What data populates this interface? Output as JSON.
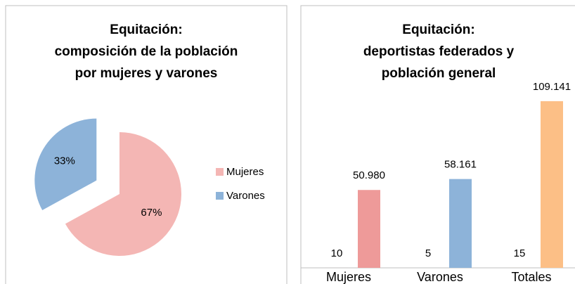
{
  "chart_data": [
    {
      "type": "pie",
      "title": [
        "Equitación:",
        "composición de la población",
        "por mujeres y varones"
      ],
      "categories": [
        "Mujeres",
        "Varones"
      ],
      "values": [
        67,
        33
      ],
      "value_labels": [
        "67%",
        "33%"
      ],
      "colors": [
        "#f4b6b4",
        "#8db3d9"
      ],
      "exploded": [
        false,
        true
      ]
    },
    {
      "type": "bar",
      "title": [
        "Equitación:",
        "deportistas federados y",
        "población general"
      ],
      "categories": [
        "Mujeres",
        "Varones",
        "Totales"
      ],
      "series": [
        {
          "values": [
            10,
            5,
            15
          ],
          "colors": [
            "#ee9a99",
            "#8db3d9",
            "#fcbf86"
          ]
        },
        {
          "values": [
            50980,
            58161,
            109141
          ],
          "value_labels": [
            "50.980",
            "58.161",
            "109.141"
          ],
          "colors": [
            "#ee9a99",
            "#8db3d9",
            "#fcbf86"
          ]
        }
      ],
      "ylim": [
        0,
        116000
      ]
    }
  ]
}
